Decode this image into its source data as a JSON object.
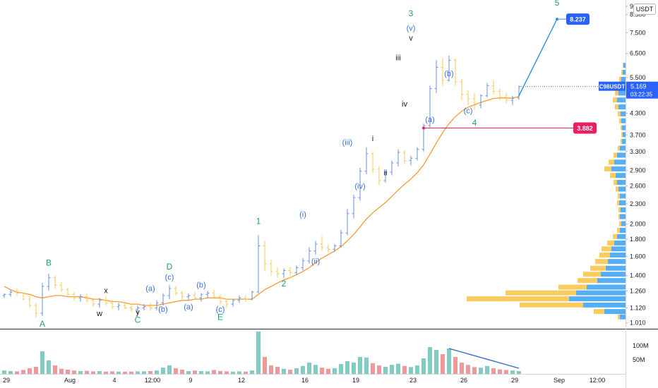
{
  "currency": "USDT",
  "chart_data": {
    "type": "candlestick",
    "symbol": "C98USDT",
    "last_price": "5.169",
    "countdown": "03:22:35",
    "colors": {
      "up": "#26a69a",
      "down": "#ef5350",
      "candle": "#6a8fd8",
      "ma": "#f39c34",
      "target_box": "#2962ff",
      "support_box": "#e91e63",
      "profile_up": "#42a5f5",
      "profile_down": "#f9c74f",
      "vol_up": "#80cbc4",
      "vol_down": "#ef9a9a",
      "wave_green": "#1f9c7a",
      "wave_blue": "#3b6fd4"
    },
    "price_axis": {
      "scale": "log",
      "ylim": [
        0.97,
        9.4
      ],
      "ticks": [
        "9.000",
        "8.500",
        "7.500",
        "6.500",
        "5.500",
        "4.300",
        "3.700",
        "3.300",
        "2.900",
        "2.600",
        "2.300",
        "2.000",
        "1.800",
        "1.600",
        "1.400",
        "1.260",
        "1.120",
        "1.010"
      ]
    },
    "volume_axis": {
      "ticks": [
        "100M",
        "50M"
      ]
    },
    "time_axis": {
      "ticks": [
        "29",
        "Aug",
        "4",
        "12:00",
        "9",
        "12",
        "16",
        "19",
        "23",
        "26",
        "29",
        "Sep",
        "12:00"
      ]
    },
    "candles": [
      [
        1.22,
        1.24,
        1.2,
        1.23
      ],
      [
        1.23,
        1.27,
        1.21,
        1.25
      ],
      [
        1.25,
        1.28,
        1.22,
        1.24
      ],
      [
        1.24,
        1.25,
        1.18,
        1.19
      ],
      [
        1.19,
        1.22,
        1.12,
        1.14
      ],
      [
        1.14,
        1.16,
        1.05,
        1.08
      ],
      [
        1.08,
        1.33,
        1.06,
        1.3
      ],
      [
        1.3,
        1.42,
        1.26,
        1.38
      ],
      [
        1.38,
        1.4,
        1.28,
        1.31
      ],
      [
        1.31,
        1.34,
        1.25,
        1.27
      ],
      [
        1.27,
        1.29,
        1.21,
        1.23
      ],
      [
        1.23,
        1.25,
        1.18,
        1.2
      ],
      [
        1.2,
        1.23,
        1.17,
        1.21
      ],
      [
        1.21,
        1.24,
        1.16,
        1.18
      ],
      [
        1.18,
        1.2,
        1.13,
        1.15
      ],
      [
        1.15,
        1.2,
        1.12,
        1.18
      ],
      [
        1.18,
        1.22,
        1.14,
        1.16
      ],
      [
        1.16,
        1.18,
        1.11,
        1.13
      ],
      [
        1.13,
        1.16,
        1.1,
        1.14
      ],
      [
        1.14,
        1.17,
        1.11,
        1.12
      ],
      [
        1.12,
        1.14,
        1.09,
        1.11
      ],
      [
        1.11,
        1.14,
        1.08,
        1.12
      ],
      [
        1.12,
        1.15,
        1.1,
        1.13
      ],
      [
        1.13,
        1.16,
        1.1,
        1.12
      ],
      [
        1.12,
        1.18,
        1.1,
        1.16
      ],
      [
        1.16,
        1.24,
        1.14,
        1.22
      ],
      [
        1.22,
        1.31,
        1.19,
        1.28
      ],
      [
        1.28,
        1.3,
        1.22,
        1.24
      ],
      [
        1.24,
        1.26,
        1.19,
        1.21
      ],
      [
        1.21,
        1.24,
        1.18,
        1.22
      ],
      [
        1.22,
        1.25,
        1.19,
        1.2
      ],
      [
        1.2,
        1.24,
        1.17,
        1.23
      ],
      [
        1.23,
        1.26,
        1.2,
        1.24
      ],
      [
        1.24,
        1.27,
        1.2,
        1.21
      ],
      [
        1.21,
        1.23,
        1.15,
        1.17
      ],
      [
        1.17,
        1.19,
        1.12,
        1.15
      ],
      [
        1.15,
        1.19,
        1.13,
        1.18
      ],
      [
        1.18,
        1.22,
        1.16,
        1.2
      ],
      [
        1.2,
        1.22,
        1.17,
        1.19
      ],
      [
        1.19,
        1.26,
        1.18,
        1.25
      ],
      [
        1.25,
        1.85,
        1.24,
        1.72
      ],
      [
        1.72,
        1.78,
        1.45,
        1.52
      ],
      [
        1.52,
        1.56,
        1.4,
        1.44
      ],
      [
        1.44,
        1.48,
        1.38,
        1.42
      ],
      [
        1.42,
        1.47,
        1.38,
        1.45
      ],
      [
        1.45,
        1.49,
        1.4,
        1.43
      ],
      [
        1.43,
        1.5,
        1.41,
        1.48
      ],
      [
        1.48,
        1.58,
        1.45,
        1.55
      ],
      [
        1.55,
        1.7,
        1.52,
        1.66
      ],
      [
        1.66,
        1.78,
        1.62,
        1.74
      ],
      [
        1.74,
        1.84,
        1.66,
        1.7
      ],
      [
        1.7,
        1.74,
        1.64,
        1.68
      ],
      [
        1.68,
        1.74,
        1.65,
        1.72
      ],
      [
        1.72,
        1.92,
        1.7,
        1.88
      ],
      [
        1.88,
        2.22,
        1.85,
        2.15
      ],
      [
        2.15,
        2.45,
        2.08,
        2.4
      ],
      [
        2.4,
        2.95,
        2.35,
        2.88
      ],
      [
        2.88,
        3.4,
        2.82,
        3.25
      ],
      [
        3.25,
        3.3,
        2.85,
        2.92
      ],
      [
        2.92,
        2.98,
        2.62,
        2.7
      ],
      [
        2.7,
        2.9,
        2.66,
        2.86
      ],
      [
        2.86,
        3.1,
        2.8,
        3.05
      ],
      [
        3.05,
        3.35,
        2.98,
        3.28
      ],
      [
        3.28,
        3.32,
        3.02,
        3.1
      ],
      [
        3.1,
        3.2,
        3.0,
        3.15
      ],
      [
        3.15,
        3.4,
        3.1,
        3.35
      ],
      [
        3.35,
        4.0,
        3.3,
        3.95
      ],
      [
        3.95,
        5.2,
        3.9,
        5.1
      ],
      [
        5.1,
        6.2,
        4.95,
        5.9
      ],
      [
        5.9,
        6.3,
        5.2,
        5.4
      ],
      [
        5.4,
        6.4,
        5.35,
        6.2
      ],
      [
        6.2,
        6.3,
        5.2,
        5.35
      ],
      [
        5.35,
        5.45,
        4.7,
        4.9
      ],
      [
        4.9,
        5.05,
        4.55,
        4.75
      ],
      [
        4.75,
        4.95,
        4.4,
        4.55
      ],
      [
        4.55,
        4.9,
        4.45,
        4.85
      ],
      [
        4.85,
        5.3,
        4.8,
        5.2
      ],
      [
        5.2,
        5.4,
        4.9,
        5.0
      ],
      [
        5.0,
        5.1,
        4.7,
        4.8
      ],
      [
        4.8,
        4.95,
        4.6,
        4.7
      ],
      [
        4.7,
        4.85,
        4.55,
        4.78
      ],
      [
        4.78,
        5.2,
        4.72,
        5.17
      ]
    ],
    "ma": [
      1.3,
      1.27,
      1.25,
      1.24,
      1.23,
      1.21,
      1.2,
      1.21,
      1.22,
      1.22,
      1.21,
      1.21,
      1.21,
      1.2,
      1.19,
      1.19,
      1.18,
      1.17,
      1.17,
      1.16,
      1.15,
      1.15,
      1.14,
      1.14,
      1.14,
      1.15,
      1.16,
      1.17,
      1.18,
      1.18,
      1.19,
      1.19,
      1.2,
      1.2,
      1.2,
      1.19,
      1.19,
      1.19,
      1.19,
      1.19,
      1.23,
      1.27,
      1.3,
      1.33,
      1.36,
      1.38,
      1.41,
      1.44,
      1.48,
      1.53,
      1.58,
      1.62,
      1.66,
      1.71,
      1.78,
      1.86,
      1.96,
      2.07,
      2.16,
      2.24,
      2.32,
      2.42,
      2.53,
      2.63,
      2.73,
      2.85,
      3.01,
      3.24,
      3.5,
      3.76,
      4.0,
      4.2,
      4.36,
      4.48,
      4.56,
      4.63,
      4.7,
      4.76,
      4.78,
      4.78,
      4.77,
      4.83
    ],
    "volume": [
      12,
      10,
      9,
      14,
      20,
      25,
      80,
      48,
      30,
      18,
      15,
      12,
      10,
      11,
      9,
      10,
      8,
      9,
      8,
      8,
      8,
      9,
      9,
      10,
      12,
      22,
      30,
      20,
      15,
      10,
      12,
      10,
      9,
      14,
      10,
      9,
      8,
      9,
      8,
      12,
      150,
      60,
      30,
      25,
      18,
      15,
      20,
      28,
      40,
      32,
      22,
      18,
      20,
      35,
      45,
      40,
      60,
      58,
      38,
      30,
      25,
      32,
      36,
      28,
      24,
      30,
      55,
      95,
      85,
      70,
      90,
      60,
      40,
      32,
      24,
      22,
      28,
      20,
      16,
      14,
      12,
      10
    ],
    "volume_ylim": [
      0,
      150
    ],
    "volume_trendline": {
      "from_index": 70,
      "from_value": 90,
      "to_index": 81,
      "to_value": 20
    },
    "volume_profile": [
      {
        "price": 1.05,
        "up": 8,
        "down": 3
      },
      {
        "price": 1.09,
        "up": 30,
        "down": 15
      },
      {
        "price": 1.14,
        "up": 60,
        "down": 90
      },
      {
        "price": 1.19,
        "up": 80,
        "down": 145
      },
      {
        "price": 1.24,
        "up": 70,
        "down": 100
      },
      {
        "price": 1.29,
        "up": 55,
        "down": 40
      },
      {
        "price": 1.35,
        "up": 40,
        "down": 28
      },
      {
        "price": 1.41,
        "up": 35,
        "down": 25
      },
      {
        "price": 1.47,
        "up": 28,
        "down": 22
      },
      {
        "price": 1.54,
        "up": 25,
        "down": 18
      },
      {
        "price": 1.61,
        "up": 22,
        "down": 15
      },
      {
        "price": 1.68,
        "up": 20,
        "down": 14
      },
      {
        "price": 1.75,
        "up": 16,
        "down": 10
      },
      {
        "price": 1.83,
        "up": 12,
        "down": 6
      },
      {
        "price": 1.91,
        "up": 8,
        "down": 4
      },
      {
        "price": 2.0,
        "up": 6,
        "down": 3
      },
      {
        "price": 2.1,
        "up": 8,
        "down": 2
      },
      {
        "price": 2.2,
        "up": 7,
        "down": 3
      },
      {
        "price": 2.31,
        "up": 9,
        "down": 3
      },
      {
        "price": 2.42,
        "up": 8,
        "down": 3
      },
      {
        "price": 2.54,
        "up": 10,
        "down": 4
      },
      {
        "price": 2.66,
        "up": 12,
        "down": 5
      },
      {
        "price": 2.79,
        "up": 14,
        "down": 8
      },
      {
        "price": 2.92,
        "up": 20,
        "down": 10
      },
      {
        "price": 3.06,
        "up": 16,
        "down": 8
      },
      {
        "price": 3.21,
        "up": 12,
        "down": 5
      },
      {
        "price": 3.37,
        "up": 8,
        "down": 3
      },
      {
        "price": 3.53,
        "up": 5,
        "down": 2
      },
      {
        "price": 3.7,
        "up": 4,
        "down": 2
      },
      {
        "price": 3.88,
        "up": 5,
        "down": 2
      },
      {
        "price": 4.07,
        "up": 6,
        "down": 3
      },
      {
        "price": 4.27,
        "up": 7,
        "down": 4
      },
      {
        "price": 4.48,
        "up": 10,
        "down": 5
      },
      {
        "price": 4.7,
        "up": 12,
        "down": 6
      },
      {
        "price": 4.93,
        "up": 10,
        "down": 5
      },
      {
        "price": 5.17,
        "up": 8,
        "down": 4
      },
      {
        "price": 5.42,
        "up": 6,
        "down": 3
      },
      {
        "price": 5.69,
        "up": 4,
        "down": 2
      },
      {
        "price": 5.97,
        "up": 3,
        "down": 1
      }
    ],
    "support_line": {
      "price": 3.882,
      "label": "3.882",
      "from_index": 66
    },
    "target": {
      "price": 8.237,
      "label": "8.237",
      "from_index": 81,
      "from_price": 4.85,
      "to_index": 87
    },
    "wave_labels": [
      {
        "text": "A",
        "color": "green",
        "index": 6,
        "price": 0.985
      },
      {
        "text": "B",
        "color": "green",
        "index": 7,
        "price": 1.5
      },
      {
        "text": "w",
        "color": "black",
        "index": 15,
        "price": 1.06
      },
      {
        "text": "x",
        "color": "black",
        "index": 16,
        "price": 1.24
      },
      {
        "text": "y",
        "color": "black",
        "index": 21,
        "price": 1.07
      },
      {
        "text": "C",
        "color": "green",
        "index": 21,
        "price": 1.01
      },
      {
        "text": "(a)",
        "color": "blue",
        "index": 23,
        "price": 1.26
      },
      {
        "text": "(b)",
        "color": "blue",
        "index": 25,
        "price": 1.09
      },
      {
        "text": "(c)",
        "color": "blue",
        "index": 26,
        "price": 1.36
      },
      {
        "text": "D",
        "color": "green",
        "index": 26,
        "price": 1.46
      },
      {
        "text": "(a)",
        "color": "blue",
        "index": 29,
        "price": 1.11
      },
      {
        "text": "(b)",
        "color": "blue",
        "index": 31,
        "price": 1.29
      },
      {
        "text": "(c)",
        "color": "blue",
        "index": 34,
        "price": 1.09
      },
      {
        "text": "E",
        "color": "green",
        "index": 34,
        "price": 1.03
      },
      {
        "text": "1",
        "color": "green",
        "index": 40,
        "price": 2.0
      },
      {
        "text": "2",
        "color": "green",
        "index": 44,
        "price": 1.3
      },
      {
        "text": "(i)",
        "color": "blue",
        "index": 47,
        "price": 2.1
      },
      {
        "text": "(ii)",
        "color": "blue",
        "index": 49,
        "price": 1.52
      },
      {
        "text": "(iii)",
        "color": "blue",
        "index": 54,
        "price": 3.45
      },
      {
        "text": "(iv)",
        "color": "blue",
        "index": 56,
        "price": 2.55
      },
      {
        "text": "i",
        "color": "black",
        "index": 58,
        "price": 3.55
      },
      {
        "text": "ii",
        "color": "black",
        "index": 60,
        "price": 2.8
      },
      {
        "text": "iii",
        "color": "black",
        "index": 62,
        "price": 6.2
      },
      {
        "text": "iv",
        "color": "black",
        "index": 63,
        "price": 4.5
      },
      {
        "text": "v",
        "color": "black",
        "index": 64,
        "price": 7.1
      },
      {
        "text": "(v)",
        "color": "blue",
        "index": 64,
        "price": 7.6
      },
      {
        "text": "3",
        "color": "green",
        "index": 64,
        "price": 8.4
      },
      {
        "text": "(a)",
        "color": "blue",
        "index": 67,
        "price": 4.05
      },
      {
        "text": "(b)",
        "color": "blue",
        "index": 70,
        "price": 5.55
      },
      {
        "text": "(c)",
        "color": "blue",
        "index": 73,
        "price": 4.3
      },
      {
        "text": "4",
        "color": "green",
        "index": 74,
        "price": 3.95
      },
      {
        "text": "5",
        "color": "green",
        "index": 87,
        "price": 9.05
      }
    ]
  }
}
